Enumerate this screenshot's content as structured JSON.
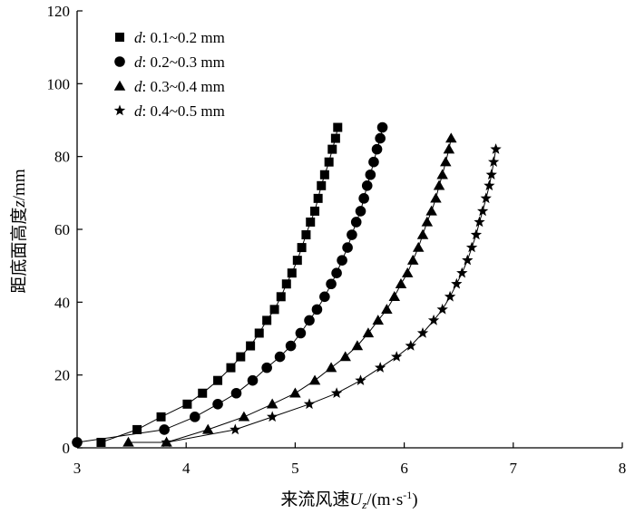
{
  "chart_data": {
    "type": "scatter",
    "title": "",
    "xlabel": {
      "main": "来流风速",
      "var": "U",
      "sub": "z",
      "unit_prefix": "/(m·s",
      "unit_sup": "-1",
      "unit_suffix": ")"
    },
    "ylabel": {
      "main": "距底面高度",
      "var": "z",
      "unit": "/mm"
    },
    "xlim": [
      3,
      8
    ],
    "ylim": [
      0,
      120
    ],
    "xticks": [
      3,
      4,
      5,
      6,
      7,
      8
    ],
    "yticks": [
      0,
      20,
      40,
      60,
      80,
      100,
      120
    ],
    "grid": false,
    "legend": "top-left",
    "series": [
      {
        "name": "d: 0.1~0.2 mm",
        "label_var": "d",
        "label_rest": ": 0.1~0.2 mm",
        "marker": "square",
        "x": [
          3.22,
          3.55,
          3.77,
          4.01,
          4.15,
          4.29,
          4.41,
          4.5,
          4.59,
          4.67,
          4.74,
          4.81,
          4.87,
          4.92,
          4.97,
          5.02,
          5.06,
          5.1,
          5.14,
          5.18,
          5.21,
          5.24,
          5.27,
          5.31,
          5.34,
          5.37,
          5.39
        ],
        "y": [
          1.5,
          5.0,
          8.5,
          12,
          15,
          18.5,
          22,
          25,
          28,
          31.5,
          35,
          38,
          41.5,
          45,
          48,
          51.5,
          55,
          58.5,
          62,
          65,
          68.5,
          72,
          75,
          78.5,
          82,
          85,
          88
        ]
      },
      {
        "name": "d: 0.2~0.3 mm",
        "label_var": "d",
        "label_rest": ": 0.2~0.3 mm",
        "marker": "circle",
        "x": [
          3.0,
          3.8,
          4.08,
          4.29,
          4.46,
          4.61,
          4.74,
          4.86,
          4.96,
          5.05,
          5.13,
          5.2,
          5.27,
          5.33,
          5.38,
          5.43,
          5.48,
          5.52,
          5.56,
          5.6,
          5.63,
          5.66,
          5.69,
          5.72,
          5.75,
          5.78,
          5.8
        ],
        "y": [
          1.5,
          5.0,
          8.5,
          12,
          15,
          18.5,
          22,
          25,
          28,
          31.5,
          35,
          38,
          41.5,
          45,
          48,
          51.5,
          55,
          58.5,
          62,
          65,
          68.5,
          72,
          75,
          78.5,
          82,
          85,
          88
        ]
      },
      {
        "name": "d: 0.3~0.4 mm",
        "label_var": "d",
        "label_rest": ": 0.3~0.4 mm",
        "marker": "triangle",
        "x": [
          3.47,
          3.82,
          4.2,
          4.53,
          4.79,
          5.0,
          5.18,
          5.33,
          5.46,
          5.57,
          5.67,
          5.76,
          5.84,
          5.91,
          5.97,
          6.03,
          6.08,
          6.13,
          6.17,
          6.21,
          6.25,
          6.29,
          6.32,
          6.35,
          6.38,
          6.41,
          6.43
        ],
        "y": [
          1.5,
          1.5,
          5.0,
          8.5,
          12,
          15,
          18.5,
          22,
          25,
          28,
          31.5,
          35,
          38,
          41.5,
          45,
          48,
          51.5,
          55,
          58.5,
          62,
          65,
          68.5,
          72,
          75,
          78.5,
          82,
          85
        ]
      },
      {
        "name": "d: 0.4~0.5 mm",
        "label_var": "d",
        "label_rest": ": 0.4~0.5 mm",
        "marker": "star",
        "x": [
          3.82,
          4.45,
          4.79,
          5.13,
          5.38,
          5.6,
          5.78,
          5.93,
          6.06,
          6.17,
          6.27,
          6.35,
          6.42,
          6.48,
          6.53,
          6.58,
          6.62,
          6.66,
          6.69,
          6.72,
          6.75,
          6.78,
          6.8,
          6.82,
          6.84
        ],
        "y": [
          1.5,
          5.0,
          8.5,
          12,
          15,
          18.5,
          22,
          25,
          28,
          31.5,
          35,
          38,
          41.5,
          45,
          48,
          51.5,
          55,
          58.5,
          62,
          65,
          68.5,
          72,
          75,
          78.5,
          82
        ]
      }
    ]
  }
}
